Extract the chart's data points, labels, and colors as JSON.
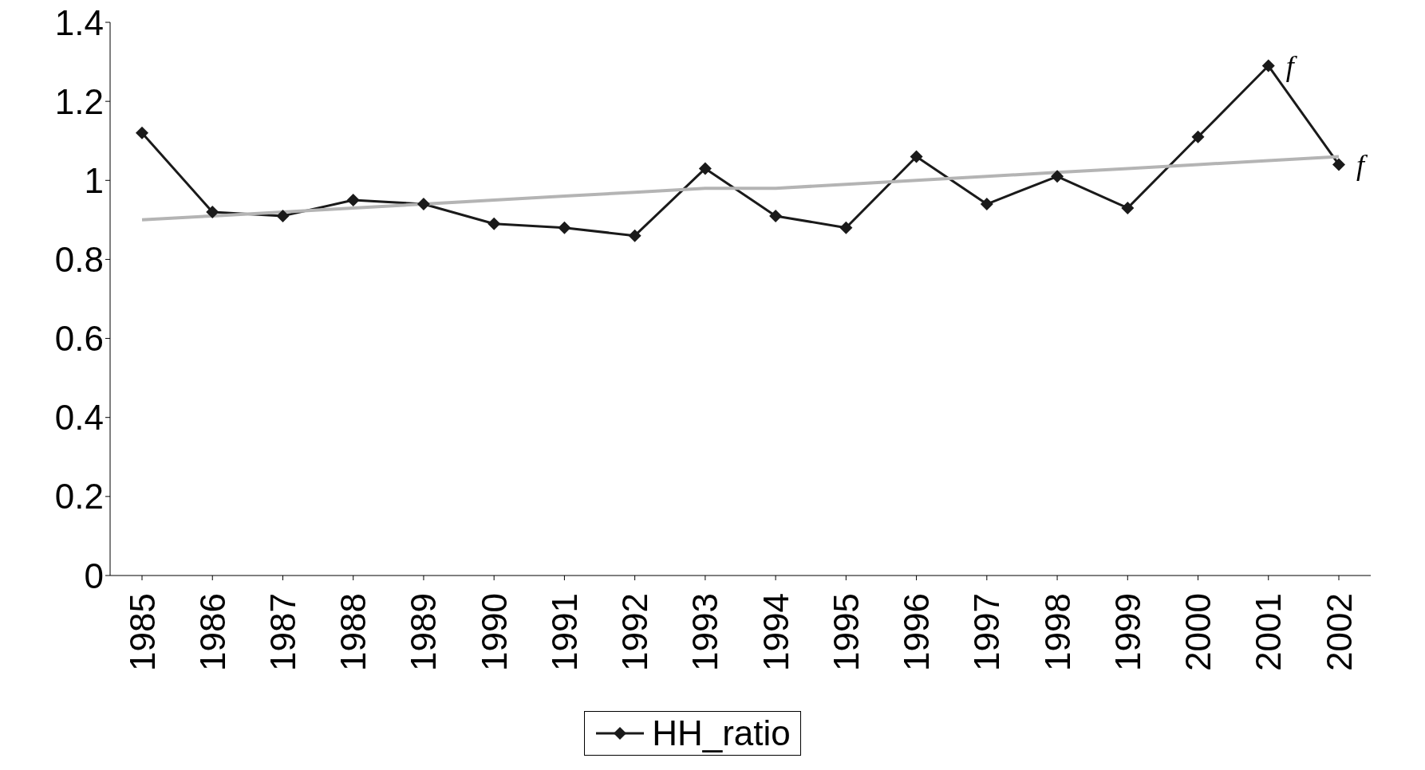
{
  "chart_data": {
    "type": "line",
    "categories": [
      "1985",
      "1986",
      "1987",
      "1988",
      "1989",
      "1990",
      "1991",
      "1992",
      "1993",
      "1994",
      "1995",
      "1996",
      "1997",
      "1998",
      "1999",
      "2000",
      "2001",
      "2002"
    ],
    "series": [
      {
        "name": "HH_ratio",
        "color": "#1a1a1a",
        "values": [
          1.12,
          0.92,
          0.91,
          0.95,
          0.94,
          0.89,
          0.88,
          0.86,
          1.03,
          0.91,
          0.88,
          1.06,
          0.94,
          1.01,
          0.93,
          1.11,
          1.29,
          1.04
        ]
      },
      {
        "type": "line",
        "color": "#b4b4b4",
        "marker": "none",
        "values": [
          0.9,
          0.91,
          0.92,
          0.93,
          0.94,
          0.95,
          0.96,
          0.97,
          0.98,
          0.98,
          0.99,
          1.0,
          1.01,
          1.02,
          1.03,
          1.04,
          1.05,
          1.06
        ]
      }
    ],
    "ylim": [
      0,
      1.4
    ],
    "yticks": [
      0,
      0.2,
      0.4,
      0.6,
      0.8,
      1,
      1.2,
      1.4
    ],
    "grid": false,
    "legend": "bottom",
    "marker": "diamond",
    "line_style": "solid",
    "annotations": [
      {
        "text": "f",
        "x": "2001",
        "y": 1.29
      },
      {
        "text": "f",
        "x": "2002",
        "y": 1.04
      }
    ]
  }
}
